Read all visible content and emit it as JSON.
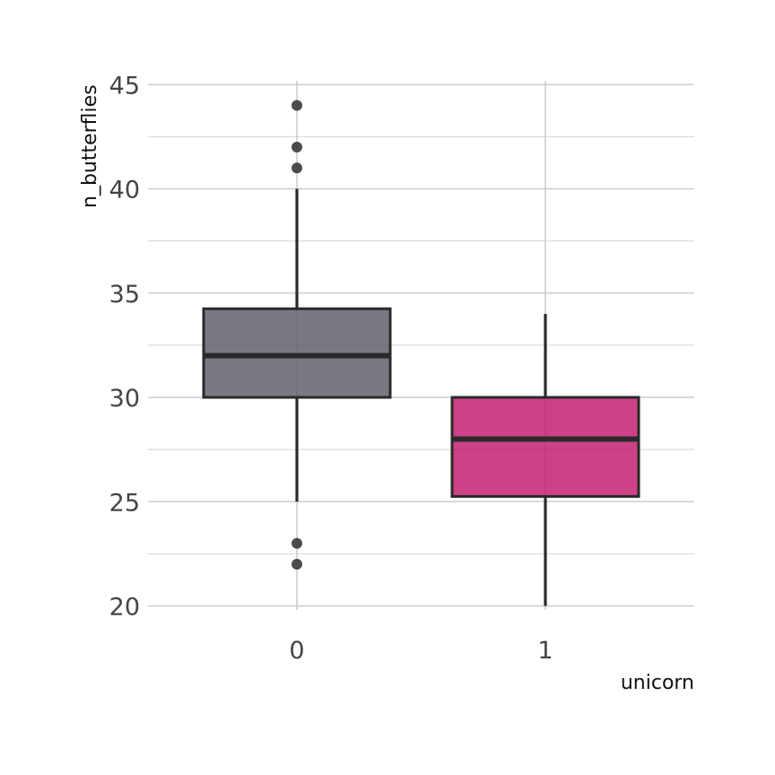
{
  "chart_data": {
    "type": "boxplot",
    "title": "",
    "xlabel": "unicorn",
    "ylabel": "n_butterflies",
    "ylim": [
      18.8,
      45.5
    ],
    "y_ticks": [
      20,
      25,
      30,
      35,
      40,
      45
    ],
    "categories": [
      "0",
      "1"
    ],
    "grid": true,
    "legend": "none",
    "boxes": [
      {
        "category": "0",
        "color": "#5c5a68",
        "q1": 30,
        "median": 32,
        "q3": 34.25,
        "whisker_low": 25,
        "whisker_high": 40,
        "outliers": [
          44,
          42,
          41,
          23,
          22
        ]
      },
      {
        "category": "1",
        "color": "#c4176c",
        "q1": 25.25,
        "median": 28,
        "q3": 30,
        "whisker_low": 20,
        "whisker_high": 34,
        "outliers": []
      }
    ]
  }
}
